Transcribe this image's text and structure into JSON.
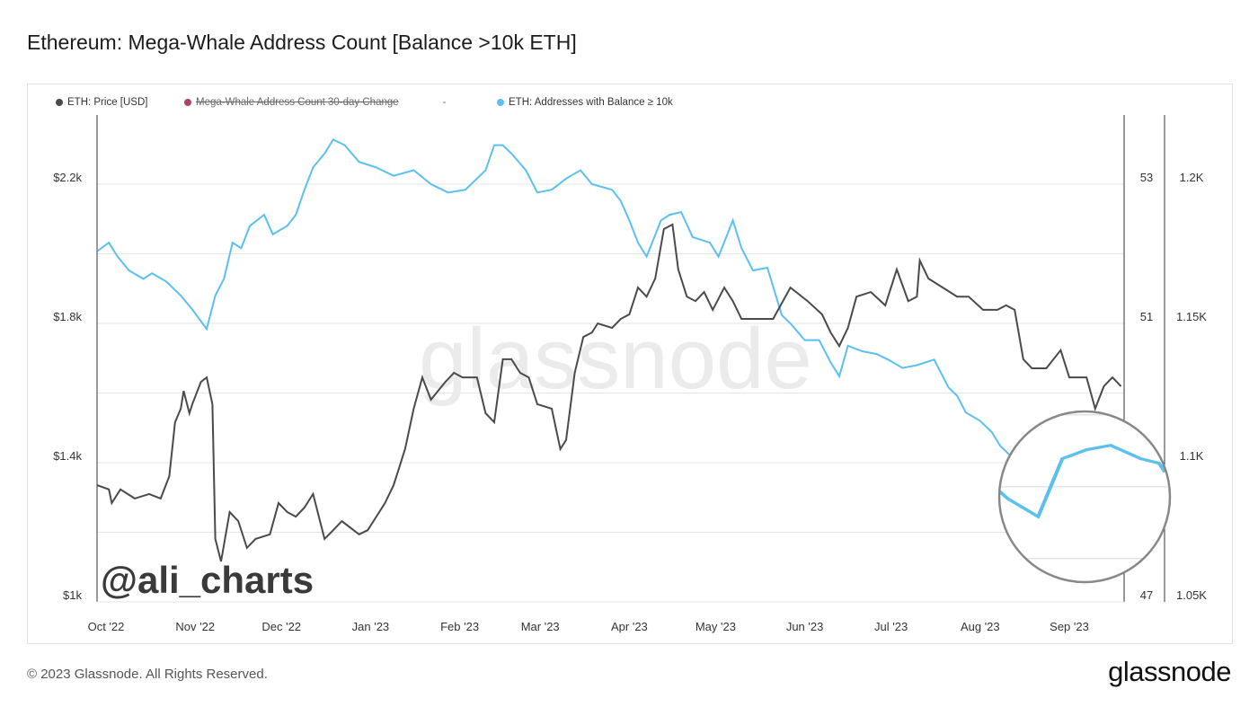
{
  "title": "Ethereum: Mega-Whale Address Count [Balance >10k ETH]",
  "footer": "© 2023 Glassnode. All Rights Reserved.",
  "logo": "glassnode",
  "watermark": "glassnode",
  "author_tag": "@ali_charts",
  "chart_data": {
    "type": "line",
    "title": "Ethereum: Mega-Whale Address Count [Balance >10k ETH]",
    "legend_placement": "top-left",
    "grid": true,
    "x_ticks": [
      "Oct '22",
      "Nov '22",
      "Dec '22",
      "Jan '23",
      "Feb '23",
      "Mar '23",
      "Apr '23",
      "May '23",
      "Jun '23",
      "Jul '23",
      "Aug '23",
      "Sep '23"
    ],
    "x_tick_dates": [
      "2022-10-01",
      "2022-11-01",
      "2022-12-01",
      "2023-01-01",
      "2023-02-01",
      "2023-03-01",
      "2023-04-01",
      "2023-05-01",
      "2023-06-01",
      "2023-07-01",
      "2023-08-01",
      "2023-09-01"
    ],
    "left_axis": {
      "ticks": [
        "$1k",
        "$1.4k",
        "$1.8k",
        "$2.2k"
      ],
      "tick_values": [
        1000,
        1400,
        1800,
        2200
      ],
      "ylim": [
        1000,
        2400
      ]
    },
    "mid_axis": {
      "ticks": [
        "47",
        "51",
        "53"
      ],
      "tick_values": [
        47,
        51,
        53
      ],
      "ylim": [
        47,
        54.4
      ]
    },
    "right_axis": {
      "ticks": [
        "1.05K",
        "1.1K",
        "1.15K",
        "1.2K"
      ],
      "tick_values": [
        1050,
        1100,
        1150,
        1200
      ],
      "ylim": [
        1050,
        1238
      ]
    },
    "series": [
      {
        "name": "ETH: Price [USD]",
        "color": "#4a4a4a",
        "axis": "left",
        "points": [
          [
            "2022-09-28",
            1335
          ],
          [
            "2022-10-02",
            1323
          ],
          [
            "2022-10-03",
            1284
          ],
          [
            "2022-10-06",
            1323
          ],
          [
            "2022-10-11",
            1297
          ],
          [
            "2022-10-16",
            1310
          ],
          [
            "2022-10-20",
            1297
          ],
          [
            "2022-10-23",
            1361
          ],
          [
            "2022-10-25",
            1516
          ],
          [
            "2022-10-27",
            1555
          ],
          [
            "2022-10-28",
            1606
          ],
          [
            "2022-10-30",
            1542
          ],
          [
            "2022-10-31",
            1568
          ],
          [
            "2022-11-03",
            1632
          ],
          [
            "2022-11-05",
            1645
          ],
          [
            "2022-11-07",
            1568
          ],
          [
            "2022-11-08",
            1181
          ],
          [
            "2022-11-10",
            1116
          ],
          [
            "2022-11-13",
            1258
          ],
          [
            "2022-11-16",
            1232
          ],
          [
            "2022-11-19",
            1155
          ],
          [
            "2022-11-22",
            1181
          ],
          [
            "2022-11-27",
            1194
          ],
          [
            "2022-11-30",
            1284
          ],
          [
            "2022-12-03",
            1258
          ],
          [
            "2022-12-06",
            1245
          ],
          [
            "2022-12-09",
            1271
          ],
          [
            "2022-12-12",
            1310
          ],
          [
            "2022-12-16",
            1181
          ],
          [
            "2022-12-19",
            1206
          ],
          [
            "2022-12-22",
            1232
          ],
          [
            "2022-12-28",
            1194
          ],
          [
            "2022-12-31",
            1206
          ],
          [
            "2023-01-03",
            1245
          ],
          [
            "2023-01-06",
            1284
          ],
          [
            "2023-01-09",
            1335
          ],
          [
            "2023-01-13",
            1439
          ],
          [
            "2023-01-16",
            1555
          ],
          [
            "2023-01-19",
            1645
          ],
          [
            "2023-01-22",
            1581
          ],
          [
            "2023-01-27",
            1632
          ],
          [
            "2023-01-30",
            1658
          ],
          [
            "2023-02-02",
            1645
          ],
          [
            "2023-02-07",
            1645
          ],
          [
            "2023-02-10",
            1542
          ],
          [
            "2023-02-13",
            1516
          ],
          [
            "2023-02-16",
            1697
          ],
          [
            "2023-02-19",
            1697
          ],
          [
            "2023-02-22",
            1658
          ],
          [
            "2023-02-25",
            1645
          ],
          [
            "2023-02-28",
            1568
          ],
          [
            "2023-03-05",
            1555
          ],
          [
            "2023-03-08",
            1439
          ],
          [
            "2023-03-10",
            1465
          ],
          [
            "2023-03-13",
            1658
          ],
          [
            "2023-03-16",
            1761
          ],
          [
            "2023-03-19",
            1774
          ],
          [
            "2023-03-21",
            1800
          ],
          [
            "2023-03-26",
            1787
          ],
          [
            "2023-03-29",
            1813
          ],
          [
            "2023-04-01",
            1826
          ],
          [
            "2023-04-04",
            1903
          ],
          [
            "2023-04-07",
            1877
          ],
          [
            "2023-04-10",
            1929
          ],
          [
            "2023-04-13",
            2071
          ],
          [
            "2023-04-16",
            2084
          ],
          [
            "2023-04-18",
            1955
          ],
          [
            "2023-04-21",
            1877
          ],
          [
            "2023-04-24",
            1864
          ],
          [
            "2023-04-27",
            1890
          ],
          [
            "2023-04-30",
            1839
          ],
          [
            "2023-05-04",
            1903
          ],
          [
            "2023-05-07",
            1864
          ],
          [
            "2023-05-10",
            1813
          ],
          [
            "2023-05-14",
            1813
          ],
          [
            "2023-05-21",
            1813
          ],
          [
            "2023-05-27",
            1903
          ],
          [
            "2023-06-02",
            1864
          ],
          [
            "2023-06-07",
            1826
          ],
          [
            "2023-06-10",
            1774
          ],
          [
            "2023-06-13",
            1735
          ],
          [
            "2023-06-16",
            1787
          ],
          [
            "2023-06-19",
            1877
          ],
          [
            "2023-06-24",
            1890
          ],
          [
            "2023-06-29",
            1852
          ],
          [
            "2023-07-03",
            1955
          ],
          [
            "2023-07-07",
            1864
          ],
          [
            "2023-07-10",
            1877
          ],
          [
            "2023-07-11",
            1981
          ],
          [
            "2023-07-14",
            1929
          ],
          [
            "2023-07-19",
            1903
          ],
          [
            "2023-07-24",
            1877
          ],
          [
            "2023-07-28",
            1877
          ],
          [
            "2023-08-02",
            1839
          ],
          [
            "2023-08-07",
            1839
          ],
          [
            "2023-08-10",
            1852
          ],
          [
            "2023-08-13",
            1839
          ],
          [
            "2023-08-16",
            1697
          ],
          [
            "2023-08-19",
            1671
          ],
          [
            "2023-08-24",
            1671
          ],
          [
            "2023-08-29",
            1723
          ],
          [
            "2023-09-01",
            1645
          ],
          [
            "2023-09-07",
            1645
          ],
          [
            "2023-09-10",
            1555
          ],
          [
            "2023-09-13",
            1619
          ],
          [
            "2023-09-16",
            1645
          ],
          [
            "2023-09-19",
            1619
          ]
        ]
      },
      {
        "name": "Mega-Whale Address Count 30-day Change",
        "color": "#a8446e",
        "axis": "mid",
        "hidden": true,
        "points": []
      },
      {
        "name": "ETH: Addresses with Balance ≥ 10k",
        "color": "#5bc0f0",
        "axis": "right",
        "points": [
          [
            "2022-09-28",
            1176
          ],
          [
            "2022-10-02",
            1179
          ],
          [
            "2022-10-05",
            1174
          ],
          [
            "2022-10-09",
            1169
          ],
          [
            "2022-10-14",
            1166
          ],
          [
            "2022-10-17",
            1168
          ],
          [
            "2022-10-22",
            1165
          ],
          [
            "2022-10-27",
            1160
          ],
          [
            "2022-10-31",
            1155
          ],
          [
            "2022-11-05",
            1148
          ],
          [
            "2022-11-08",
            1160
          ],
          [
            "2022-11-11",
            1166
          ],
          [
            "2022-11-14",
            1179
          ],
          [
            "2022-11-17",
            1177
          ],
          [
            "2022-11-20",
            1185
          ],
          [
            "2022-11-25",
            1189
          ],
          [
            "2022-11-28",
            1182
          ],
          [
            "2022-12-03",
            1185
          ],
          [
            "2022-12-06",
            1189
          ],
          [
            "2022-12-09",
            1198
          ],
          [
            "2022-12-12",
            1206
          ],
          [
            "2022-12-16",
            1211
          ],
          [
            "2022-12-19",
            1216
          ],
          [
            "2022-12-23",
            1214
          ],
          [
            "2022-12-28",
            1208
          ],
          [
            "2023-01-03",
            1206
          ],
          [
            "2023-01-09",
            1203
          ],
          [
            "2023-01-16",
            1205
          ],
          [
            "2023-01-22",
            1200
          ],
          [
            "2023-01-28",
            1197
          ],
          [
            "2023-02-03",
            1198
          ],
          [
            "2023-02-10",
            1205
          ],
          [
            "2023-02-13",
            1214
          ],
          [
            "2023-02-16",
            1214
          ],
          [
            "2023-02-19",
            1211
          ],
          [
            "2023-02-24",
            1205
          ],
          [
            "2023-02-28",
            1197
          ],
          [
            "2023-03-05",
            1198
          ],
          [
            "2023-03-10",
            1202
          ],
          [
            "2023-03-15",
            1205
          ],
          [
            "2023-03-19",
            1200
          ],
          [
            "2023-03-26",
            1198
          ],
          [
            "2023-03-29",
            1194
          ],
          [
            "2023-04-01",
            1187
          ],
          [
            "2023-04-04",
            1179
          ],
          [
            "2023-04-07",
            1174
          ],
          [
            "2023-04-12",
            1187
          ],
          [
            "2023-04-15",
            1189
          ],
          [
            "2023-04-19",
            1190
          ],
          [
            "2023-04-23",
            1181
          ],
          [
            "2023-04-29",
            1179
          ],
          [
            "2023-05-02",
            1174
          ],
          [
            "2023-05-07",
            1187
          ],
          [
            "2023-05-10",
            1177
          ],
          [
            "2023-05-14",
            1169
          ],
          [
            "2023-05-19",
            1170
          ],
          [
            "2023-05-24",
            1153
          ],
          [
            "2023-05-27",
            1150
          ],
          [
            "2023-06-01",
            1144
          ],
          [
            "2023-06-06",
            1144
          ],
          [
            "2023-06-10",
            1136
          ],
          [
            "2023-06-13",
            1131
          ],
          [
            "2023-06-16",
            1142
          ],
          [
            "2023-06-21",
            1140
          ],
          [
            "2023-06-26",
            1139
          ],
          [
            "2023-06-30",
            1137
          ],
          [
            "2023-07-05",
            1134
          ],
          [
            "2023-07-10",
            1135
          ],
          [
            "2023-07-16",
            1137
          ],
          [
            "2023-07-21",
            1127
          ],
          [
            "2023-07-24",
            1124
          ],
          [
            "2023-07-27",
            1118
          ],
          [
            "2023-08-01",
            1115
          ],
          [
            "2023-08-05",
            1111
          ],
          [
            "2023-08-08",
            1106
          ],
          [
            "2023-08-12",
            1102
          ],
          [
            "2023-08-15",
            1098
          ],
          [
            "2023-08-19",
            1092
          ],
          [
            "2023-08-24",
            1086
          ],
          [
            "2023-08-29",
            1082
          ],
          [
            "2023-09-02",
            1095
          ],
          [
            "2023-09-06",
            1097
          ],
          [
            "2023-09-10",
            1098
          ],
          [
            "2023-09-15",
            1095
          ],
          [
            "2023-09-18",
            1094
          ],
          [
            "2023-09-19",
            1092
          ]
        ]
      }
    ],
    "legend_separator": "-"
  },
  "colors": {
    "price": "#4a4a4a",
    "mega_whale_change": "#a8446e",
    "addresses": "#5bc0f0",
    "grid": "#e6e6e6"
  }
}
